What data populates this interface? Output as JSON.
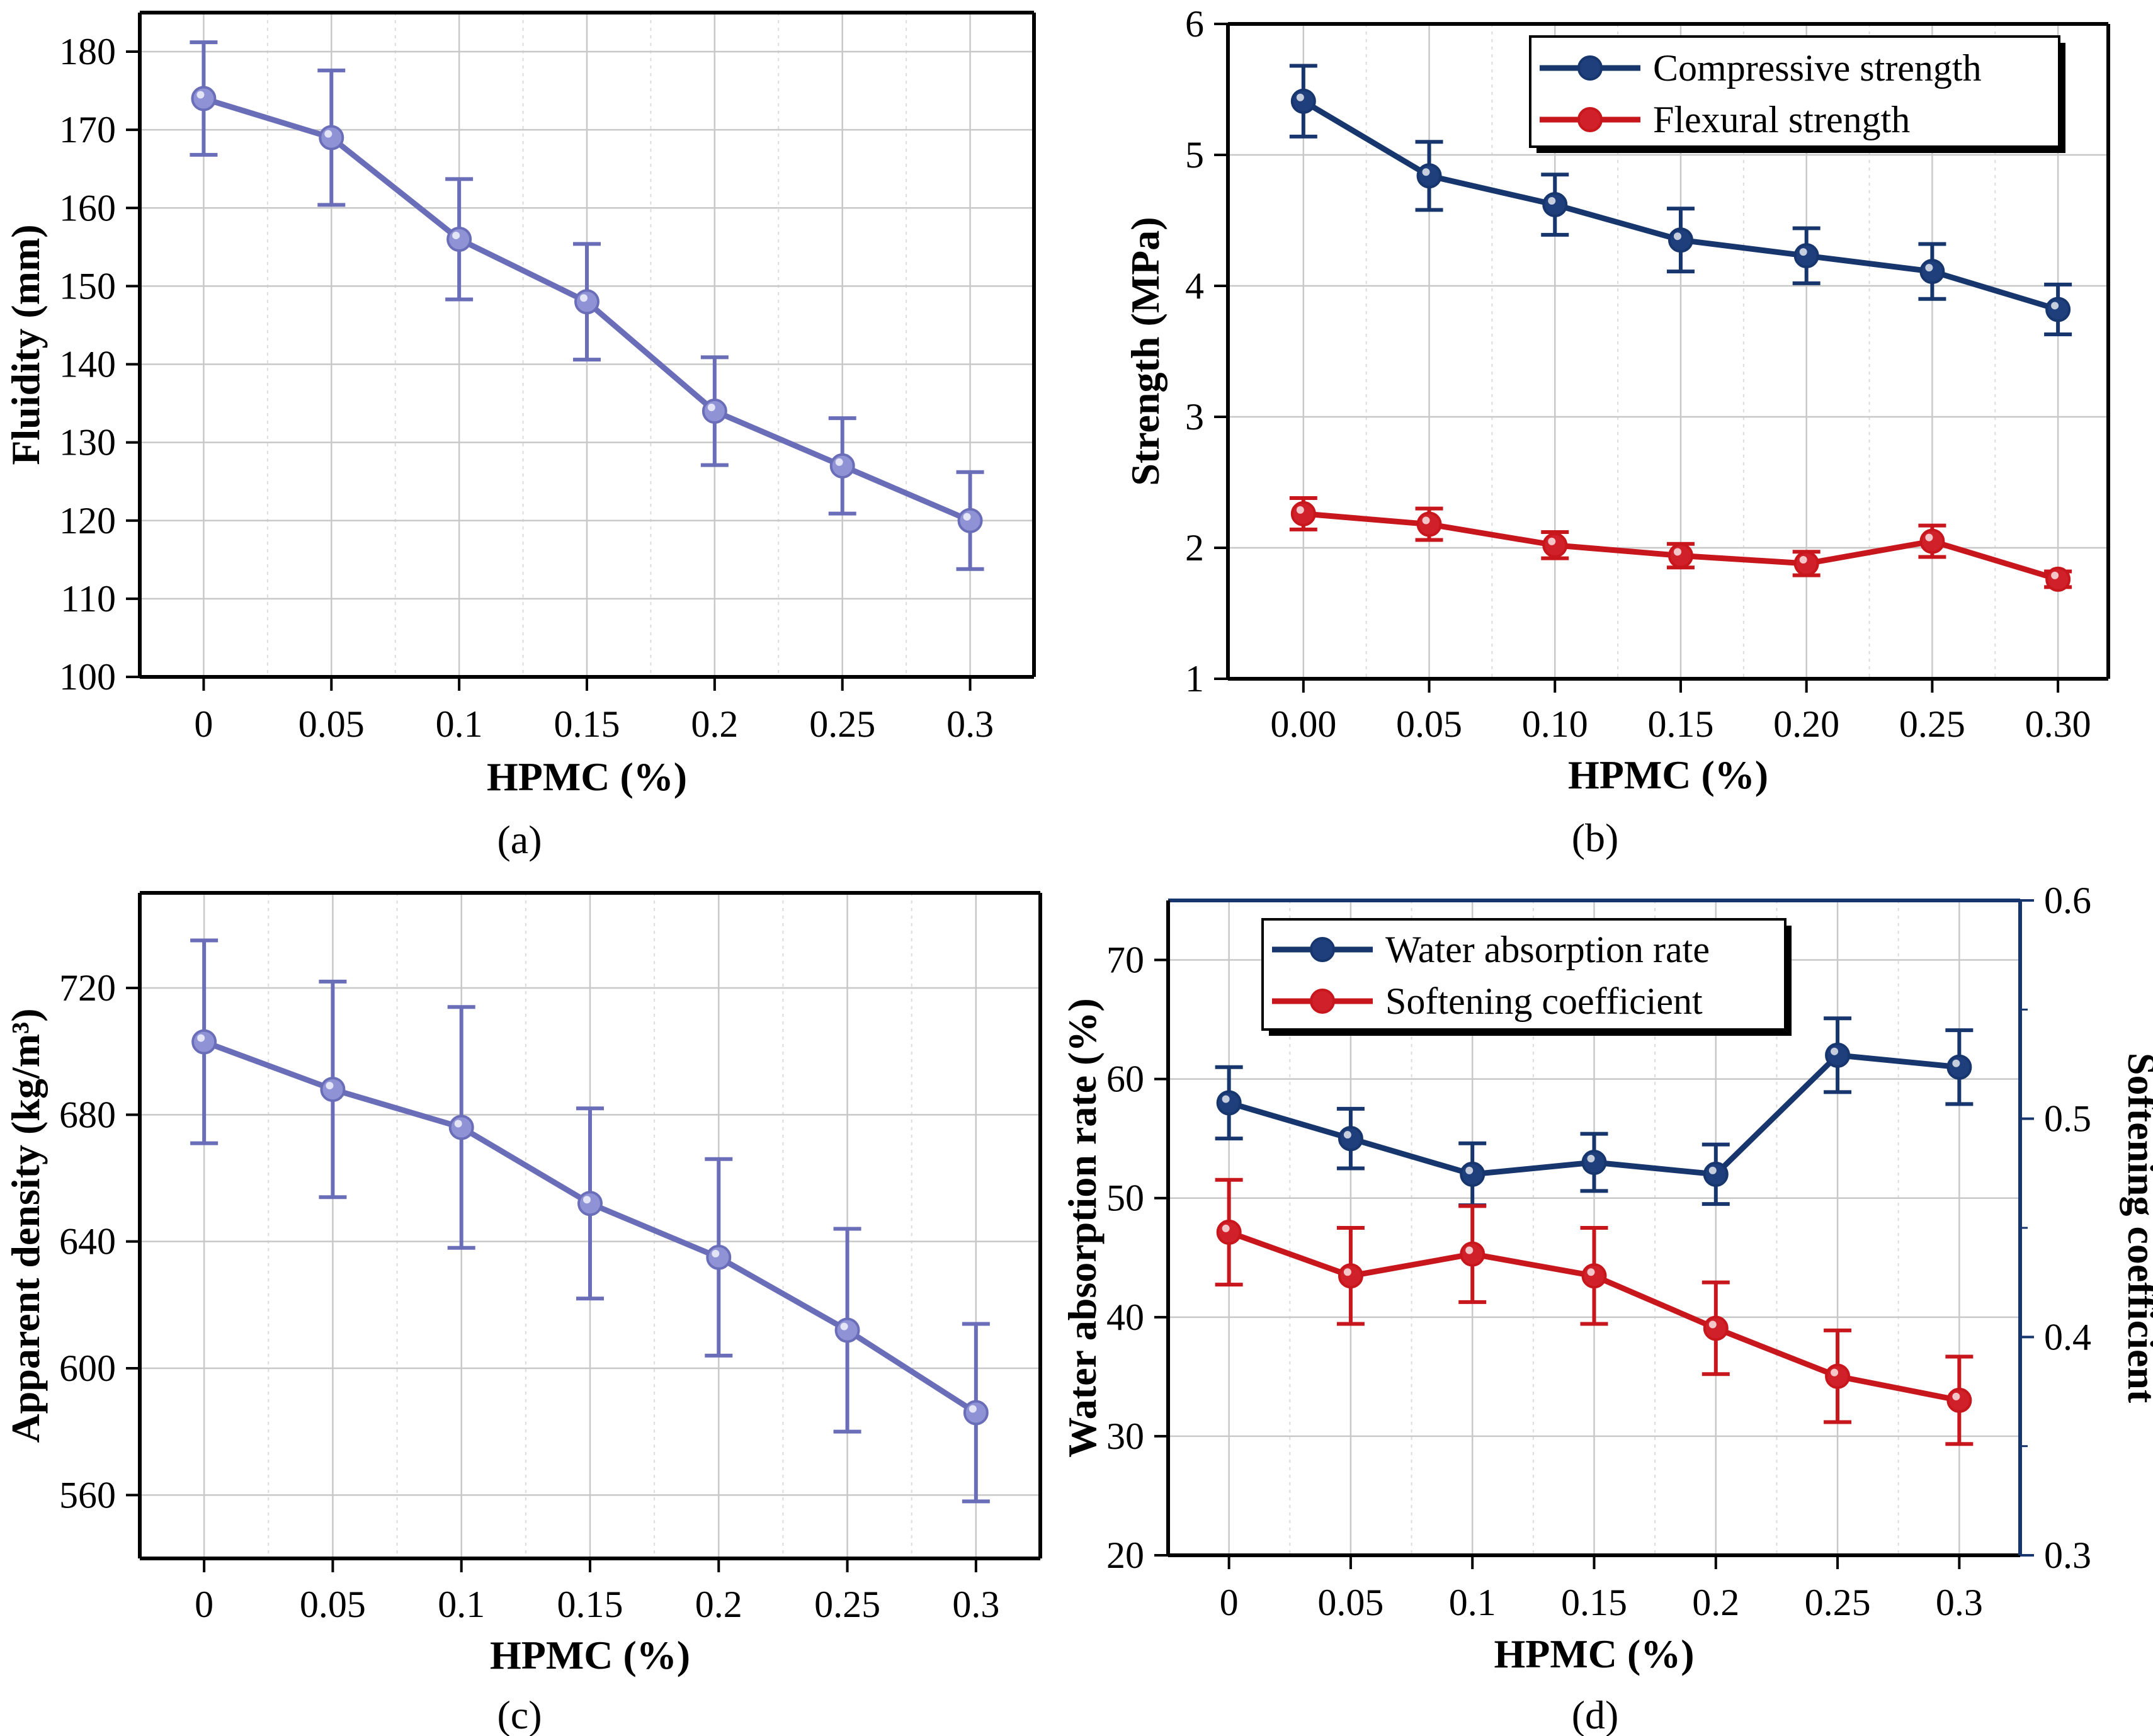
{
  "colors": {
    "purple_line": "#6a6eb8",
    "purple_marker": "#8f93d6",
    "navy_line": "#17366d",
    "navy_marker": "#1f3f7c",
    "red_line": "#c8161d",
    "red_marker": "#d0202a",
    "grid": "#c8c8c8",
    "frame": "#000000",
    "right_axis_frame": "#17366d"
  },
  "chart_data": [
    {
      "id": "a",
      "type": "line",
      "panel_label": "(a)",
      "xlabel": "HPMC (%)",
      "ylabel": "Fluidity (mm)",
      "x": [
        0,
        0.05,
        0.1,
        0.15,
        0.2,
        0.25,
        0.3
      ],
      "x_tick_labels": [
        "0",
        "0.05",
        "0.1",
        "0.15",
        "0.2",
        "0.25",
        "0.3"
      ],
      "xlim": [
        -0.025,
        0.325
      ],
      "ylim": [
        100,
        185
      ],
      "y_ticks": [
        100,
        110,
        120,
        130,
        140,
        150,
        160,
        170,
        180
      ],
      "grid": true,
      "series": [
        {
          "values": [
            174,
            169,
            156,
            148,
            134,
            127,
            120
          ],
          "errors": [
            7.2,
            8.6,
            7.7,
            7.4,
            6.9,
            6.1,
            6.2
          ],
          "color": "#6a6eb8",
          "marker_color": "#8f93d6"
        }
      ]
    },
    {
      "id": "b",
      "type": "line",
      "panel_label": "(b)",
      "xlabel": "HPMC (%)",
      "ylabel": "Strength (MPa)",
      "x": [
        0,
        0.05,
        0.1,
        0.15,
        0.2,
        0.25,
        0.3
      ],
      "x_tick_labels": [
        "0.00",
        "0.05",
        "0.10",
        "0.15",
        "0.20",
        "0.25",
        "0.30"
      ],
      "xlim": [
        -0.03,
        0.32
      ],
      "ylim": [
        1,
        6
      ],
      "y_ticks": [
        1,
        2,
        3,
        4,
        5,
        6
      ],
      "grid": true,
      "legend_position": "top-right",
      "series": [
        {
          "name": "Compressive strength",
          "values": [
            5.41,
            4.84,
            4.62,
            4.35,
            4.23,
            4.11,
            3.82
          ],
          "errors": [
            0.27,
            0.26,
            0.23,
            0.24,
            0.21,
            0.21,
            0.19
          ],
          "color": "#17366d",
          "marker_color": "#1f3f7c"
        },
        {
          "name": "Flexural strength",
          "values": [
            2.26,
            2.18,
            2.02,
            1.94,
            1.88,
            2.05,
            1.76
          ],
          "errors": [
            0.12,
            0.12,
            0.1,
            0.09,
            0.09,
            0.12,
            0.06
          ],
          "color": "#c8161d",
          "marker_color": "#d0202a"
        }
      ]
    },
    {
      "id": "c",
      "type": "line",
      "panel_label": "(c)",
      "xlabel": "HPMC (%)",
      "ylabel": "Apparent density (kg/m³)",
      "x": [
        0,
        0.05,
        0.1,
        0.15,
        0.2,
        0.25,
        0.3
      ],
      "x_tick_labels": [
        "0",
        "0.05",
        "0.1",
        "0.15",
        "0.2",
        "0.25",
        "0.3"
      ],
      "xlim": [
        -0.025,
        0.325
      ],
      "ylim": [
        540,
        750
      ],
      "y_ticks": [
        560,
        600,
        640,
        680,
        720
      ],
      "grid": true,
      "series": [
        {
          "values": [
            703,
            688,
            676,
            652,
            635,
            612,
            586
          ],
          "errors": [
            32,
            34,
            38,
            30,
            31,
            32,
            28
          ],
          "color": "#6a6eb8",
          "marker_color": "#8f93d6"
        }
      ]
    },
    {
      "id": "d",
      "type": "line",
      "panel_label": "(d)",
      "xlabel": "HPMC (%)",
      "ylabel": "Water absorption rate (%)",
      "y2label": "Softening coefficient",
      "x": [
        0,
        0.05,
        0.1,
        0.15,
        0.2,
        0.25,
        0.3
      ],
      "x_tick_labels": [
        "0",
        "0.05",
        "0.1",
        "0.15",
        "0.2",
        "0.25",
        "0.3"
      ],
      "xlim": [
        -0.025,
        0.325
      ],
      "ylim": [
        20,
        75
      ],
      "y_ticks": [
        20,
        30,
        40,
        50,
        60,
        70
      ],
      "y2lim": [
        0.3,
        0.6
      ],
      "y2_ticks": [
        0.3,
        0.4,
        0.5,
        0.6
      ],
      "y2_tick_labels": [
        "0.3",
        "0.4",
        "0.5",
        "0.6"
      ],
      "grid": true,
      "legend_position": "top-right",
      "series": [
        {
          "name": "Water absorption rate",
          "axis": "left",
          "values": [
            58,
            55,
            52,
            53,
            52,
            62,
            61
          ],
          "errors": [
            3.0,
            2.5,
            2.6,
            2.4,
            2.5,
            3.1,
            3.1
          ],
          "color": "#17366d",
          "marker_color": "#1f3f7c"
        },
        {
          "name": "Softening coefficient",
          "axis": "right",
          "values": [
            0.448,
            0.428,
            0.438,
            0.428,
            0.404,
            0.382,
            0.371
          ],
          "errors": [
            0.024,
            0.022,
            0.022,
            0.022,
            0.021,
            0.021,
            0.02
          ],
          "color": "#c8161d",
          "marker_color": "#d0202a"
        }
      ]
    }
  ]
}
